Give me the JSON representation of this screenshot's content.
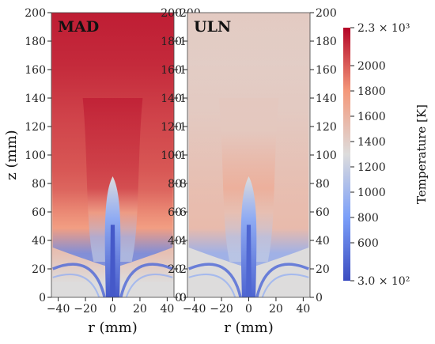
{
  "chart_data": {
    "type": "heatmap",
    "panels": [
      {
        "name": "MAD",
        "title": "MAD",
        "xlabel": "r (mm)",
        "ylabel": "z (mm)",
        "xlim": [
          -45,
          45
        ],
        "ylim": [
          0,
          200
        ],
        "xticks": [
          -40,
          -20,
          0,
          20,
          40
        ],
        "xtick_labels": [
          "−40",
          "−20",
          "0",
          "20",
          "40"
        ],
        "yticks": [
          0,
          20,
          40,
          60,
          80,
          100,
          120,
          140,
          160,
          180,
          200
        ],
        "ytick_labels": [
          "0",
          "20",
          "40",
          "60",
          "80",
          "100",
          "120",
          "140",
          "160",
          "180",
          "200"
        ],
        "ambient_temperature": 1300,
        "hot_region_temperature": 2100,
        "core_temperature": 380,
        "cold_core_height": 85,
        "field": [
          {
            "z": 200,
            "T": [
              2200,
              2220,
              2250,
              2280,
              2250,
              2220,
              2200
            ]
          },
          {
            "z": 160,
            "T": [
              2150,
              2180,
              2200,
              2220,
              2200,
              2180,
              2150
            ]
          },
          {
            "z": 120,
            "T": [
              2050,
              2100,
              2150,
              2100,
              2150,
              2100,
              2050
            ]
          },
          {
            "z": 90,
            "T": [
              2000,
              2050,
              2100,
              1600,
              2100,
              2050,
              2000
            ]
          },
          {
            "z": 60,
            "T": [
              1700,
              2000,
              1700,
              800,
              1700,
              2000,
              1700
            ]
          },
          {
            "z": 30,
            "T": [
              1500,
              1800,
              1000,
              450,
              1000,
              1800,
              1500
            ]
          },
          {
            "z": 10,
            "T": [
              1300,
              600,
              1200,
              400,
              1200,
              600,
              1300
            ]
          }
        ]
      },
      {
        "name": "ULN",
        "title": "ULN",
        "xlabel": "r (mm)",
        "ylabel": "",
        "xlim": [
          -45,
          45
        ],
        "ylim": [
          0,
          200
        ],
        "xticks": [
          -40,
          -20,
          0,
          20,
          40
        ],
        "xtick_labels": [
          "−40",
          "−20",
          "0",
          "20",
          "40"
        ],
        "yticks": [
          0,
          20,
          40,
          60,
          80,
          100,
          120,
          140,
          160,
          180,
          200
        ],
        "ytick_labels": [
          "0",
          "20",
          "40",
          "60",
          "80",
          "100",
          "120",
          "140",
          "160",
          "180",
          "200"
        ],
        "ambient_temperature": 1300,
        "hot_region_temperature": 1700,
        "core_temperature": 450,
        "cold_core_height": 85,
        "field": [
          {
            "z": 200,
            "T": [
              1420,
              1440,
              1460,
              1480,
              1460,
              1440,
              1420
            ]
          },
          {
            "z": 160,
            "T": [
              1400,
              1420,
              1450,
              1470,
              1450,
              1420,
              1400
            ]
          },
          {
            "z": 120,
            "T": [
              1350,
              1500,
              1600,
              1450,
              1600,
              1500,
              1350
            ]
          },
          {
            "z": 90,
            "T": [
              1320,
              1600,
              1700,
              1100,
              1700,
              1600,
              1320
            ]
          },
          {
            "z": 60,
            "T": [
              1300,
              1700,
              1500,
              800,
              1500,
              1700,
              1300
            ]
          },
          {
            "z": 30,
            "T": [
              1300,
              1750,
              1100,
              500,
              1100,
              1750,
              1300
            ]
          },
          {
            "z": 10,
            "T": [
              1300,
              700,
              1200,
              450,
              1200,
              700,
              1300
            ]
          }
        ]
      }
    ],
    "colorbar": {
      "title": "Temperature [K]",
      "min": 300,
      "max": 2300,
      "ticks": [
        600,
        800,
        1000,
        1200,
        1400,
        1600,
        1800,
        2000
      ],
      "tick_labels": [
        "600",
        "800",
        "1000",
        "1200",
        "1400",
        "1600",
        "1800",
        "2000"
      ],
      "max_label": "2.3 × 10³",
      "min_label": "3.0 × 10²",
      "colormap": [
        {
          "stop": 0.0,
          "color": "#3b4cc0"
        },
        {
          "stop": 0.25,
          "color": "#7b9ff9"
        },
        {
          "stop": 0.5,
          "color": "#dddcdc"
        },
        {
          "stop": 0.75,
          "color": "#f4987a"
        },
        {
          "stop": 1.0,
          "color": "#b40426"
        }
      ]
    }
  }
}
